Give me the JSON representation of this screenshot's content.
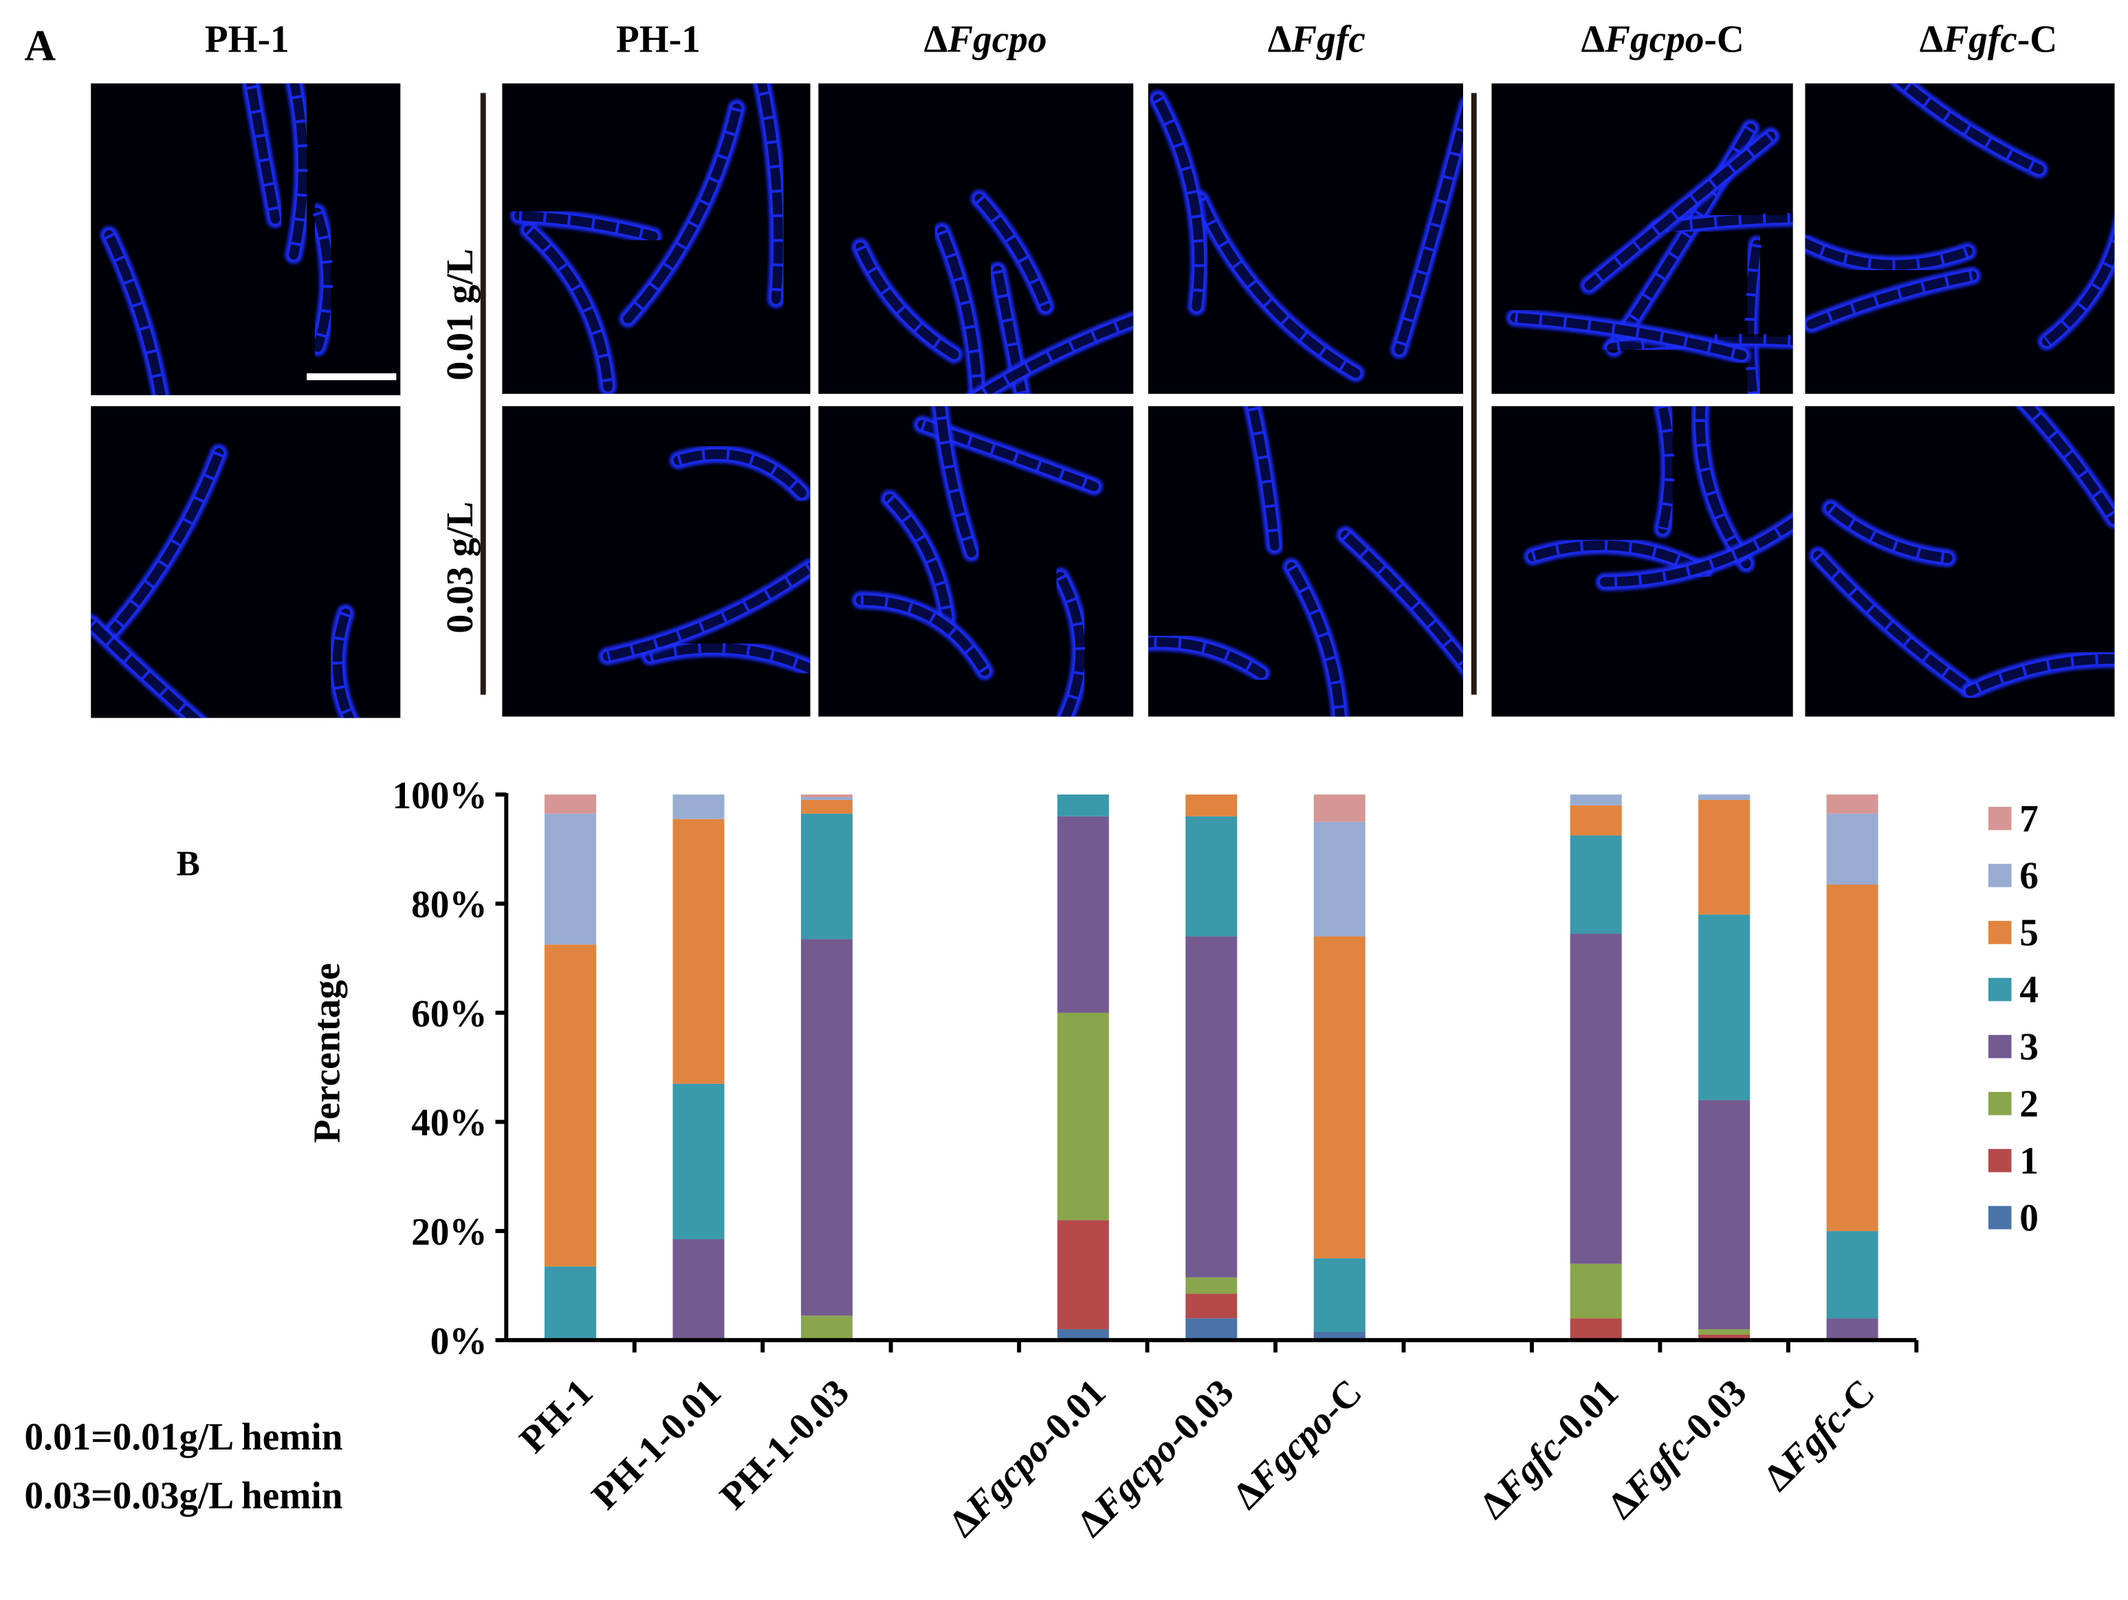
{
  "panel_a": {
    "label": "A",
    "single_title": "PH-1",
    "column_titles": [
      {
        "delta": "",
        "italic": "",
        "plain": "PH-1"
      },
      {
        "delta": "Δ",
        "italic": "Fgcpo",
        "plain": ""
      },
      {
        "delta": "Δ",
        "italic": "Fgfc",
        "plain": ""
      },
      {
        "delta": "Δ",
        "italic": "Fgcpo",
        "plain": "-C"
      },
      {
        "delta": "Δ",
        "italic": "Fgfc",
        "plain": "-C"
      }
    ],
    "row_labels": [
      "0.01 g/L",
      "0.03 g/L"
    ],
    "image_count": 12,
    "scale_bar": true
  },
  "panel_b": {
    "label": "B"
  },
  "footnotes": [
    "0.01=0.01g/L hemin",
    "0.03=0.03g/L hemin"
  ],
  "colors": {
    "0": "#4a73a8",
    "1": "#b54a4a",
    "2": "#8aa64c",
    "3": "#735a91",
    "4": "#3a99ab",
    "5": "#e0843f",
    "6": "#98acd2",
    "7": "#d69696",
    "micrograph_bg": "#000008",
    "conidia": "#1a2dff"
  },
  "chart_data": {
    "type": "bar",
    "stacked": true,
    "title": "",
    "xlabel": "",
    "ylabel": "Percentage",
    "ylim": [
      0,
      100
    ],
    "yticks": [
      "0%",
      "20%",
      "40%",
      "60%",
      "80%",
      "100%"
    ],
    "legend_position": "right",
    "slots": 11,
    "categories": [
      {
        "slot": 0,
        "delta": "",
        "italic": "",
        "plain": "PH-1"
      },
      {
        "slot": 1,
        "delta": "",
        "italic": "",
        "plain": "PH-1-0.01"
      },
      {
        "slot": 2,
        "delta": "",
        "italic": "",
        "plain": "PH-1-0.03"
      },
      {
        "slot": 4,
        "delta": "Δ",
        "italic": "Fgcpo",
        "plain": "-0.01"
      },
      {
        "slot": 5,
        "delta": "Δ",
        "italic": "Fgcpo",
        "plain": "-0.03"
      },
      {
        "slot": 6,
        "delta": "Δ",
        "italic": "Fgcpo",
        "plain": "-C"
      },
      {
        "slot": 8,
        "delta": "Δ",
        "italic": "Fgfc",
        "plain": "-0.01"
      },
      {
        "slot": 9,
        "delta": "Δ",
        "italic": "Fgfc",
        "plain": "-0.03"
      },
      {
        "slot": 10,
        "delta": "Δ",
        "italic": "Fgfc",
        "plain": "-C"
      }
    ],
    "series": [
      {
        "name": "0",
        "values": [
          0,
          0,
          0,
          2,
          4,
          1.5,
          0,
          0,
          0
        ]
      },
      {
        "name": "1",
        "values": [
          0,
          0,
          0,
          20,
          4.5,
          0,
          4,
          1,
          0
        ]
      },
      {
        "name": "2",
        "values": [
          0,
          0,
          4.5,
          38,
          3,
          0,
          10,
          1,
          0
        ]
      },
      {
        "name": "3",
        "values": [
          0,
          18.5,
          69,
          36,
          62.5,
          0,
          60.5,
          42,
          4
        ]
      },
      {
        "name": "4",
        "values": [
          13.5,
          28.5,
          23,
          4,
          22,
          13.5,
          18,
          34,
          16
        ]
      },
      {
        "name": "5",
        "values": [
          59,
          48.5,
          2.5,
          0,
          4,
          59,
          5.5,
          21,
          63.5
        ]
      },
      {
        "name": "6",
        "values": [
          24,
          4.5,
          0.5,
          0,
          0,
          21,
          2,
          1,
          13
        ]
      },
      {
        "name": "7",
        "values": [
          3.5,
          0,
          0.5,
          0,
          0,
          5,
          0,
          0,
          3.5
        ]
      }
    ]
  }
}
